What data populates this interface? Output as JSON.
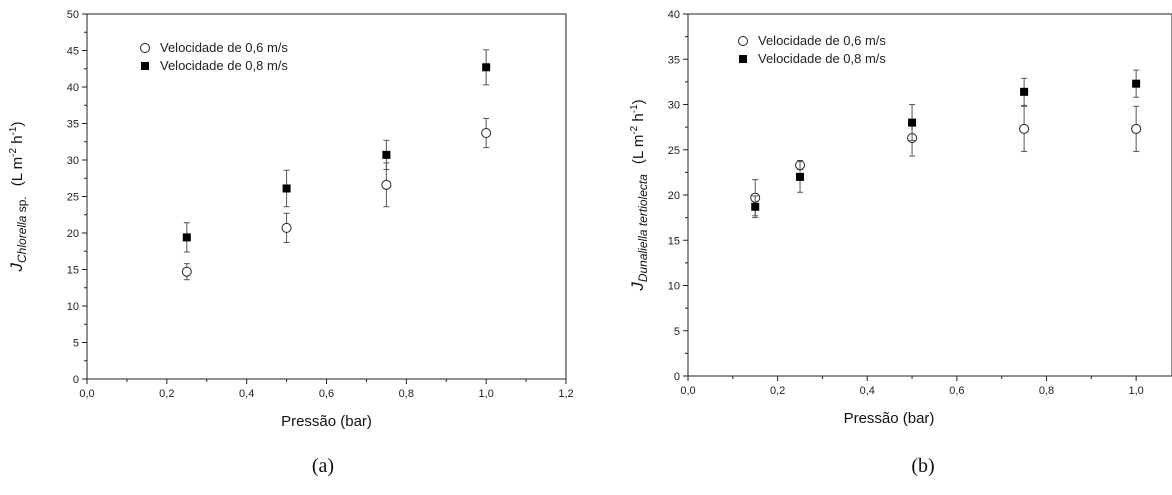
{
  "chart_data": [
    {
      "type": "scatter",
      "panel_label": "(a)",
      "xlabel": "Pressão (bar)",
      "ylabel": {
        "main": "J",
        "sub_italic": "Chlorella",
        "sub_rest": " sp.",
        "units": "(L m",
        "units_sup1": "-2",
        "units_mid": " h",
        "units_sup2": "-1",
        "units_end": ")"
      },
      "xlim": [
        0.0,
        1.2
      ],
      "ylim": [
        0,
        50
      ],
      "xticks": [
        "0,0",
        "0,2",
        "0,4",
        "0,6",
        "0,8",
        "1,0",
        "1,2"
      ],
      "xtick_values": [
        0.0,
        0.2,
        0.4,
        0.6,
        0.8,
        1.0,
        1.2
      ],
      "yticks": [
        "0",
        "5",
        "10",
        "15",
        "20",
        "25",
        "30",
        "35",
        "40",
        "45",
        "50"
      ],
      "ytick_values": [
        0,
        5,
        10,
        15,
        20,
        25,
        30,
        35,
        40,
        45,
        50
      ],
      "legend_position": "top-left",
      "series": [
        {
          "name": "Velocidade de 0,6 m/s",
          "marker": "open-circle",
          "x": [
            0.25,
            0.5,
            0.75,
            1.0
          ],
          "y": [
            14.7,
            20.7,
            26.6,
            33.7
          ],
          "err": [
            1.1,
            2.0,
            3.0,
            2.0
          ]
        },
        {
          "name": "Velocidade de 0,8 m/s",
          "marker": "filled-square",
          "x": [
            0.25,
            0.5,
            0.75,
            1.0
          ],
          "y": [
            19.4,
            26.1,
            30.7,
            42.7
          ],
          "err": [
            2.0,
            2.5,
            2.0,
            2.4
          ]
        }
      ]
    },
    {
      "type": "scatter",
      "panel_label": "(b)",
      "xlabel": "Pressão (bar)",
      "ylabel": {
        "main": "J",
        "sub_italic": "Dunaliella tertiolecta",
        "sub_rest": "",
        "units": "(L m",
        "units_sup1": "-2",
        "units_mid": " h",
        "units_sup2": "-1",
        "units_end": ")"
      },
      "xlim": [
        0.0,
        1.08
      ],
      "ylim": [
        0,
        40
      ],
      "xticks": [
        "0,0",
        "0,2",
        "0,4",
        "0,6",
        "0,8",
        "1,0"
      ],
      "xtick_values": [
        0.0,
        0.2,
        0.4,
        0.6,
        0.8,
        1.0
      ],
      "yticks": [
        "0",
        "5",
        "10",
        "15",
        "20",
        "25",
        "30",
        "35",
        "40"
      ],
      "ytick_values": [
        0,
        5,
        10,
        15,
        20,
        25,
        30,
        35,
        40
      ],
      "legend_position": "top-left",
      "series": [
        {
          "name": "Velocidade de 0,6 m/s",
          "marker": "open-circle",
          "x": [
            0.15,
            0.25,
            0.5,
            0.75,
            1.0
          ],
          "y": [
            19.7,
            23.3,
            26.3,
            27.3,
            27.3
          ],
          "err": [
            2.0,
            0.5,
            2.0,
            2.5,
            2.5
          ]
        },
        {
          "name": "Velocidade de 0,8 m/s",
          "marker": "filled-square",
          "x": [
            0.15,
            0.25,
            0.5,
            0.75,
            1.0
          ],
          "y": [
            18.7,
            22.0,
            28.0,
            31.4,
            32.3
          ],
          "err": [
            1.2,
            1.7,
            2.0,
            1.5,
            1.5
          ]
        }
      ]
    }
  ]
}
